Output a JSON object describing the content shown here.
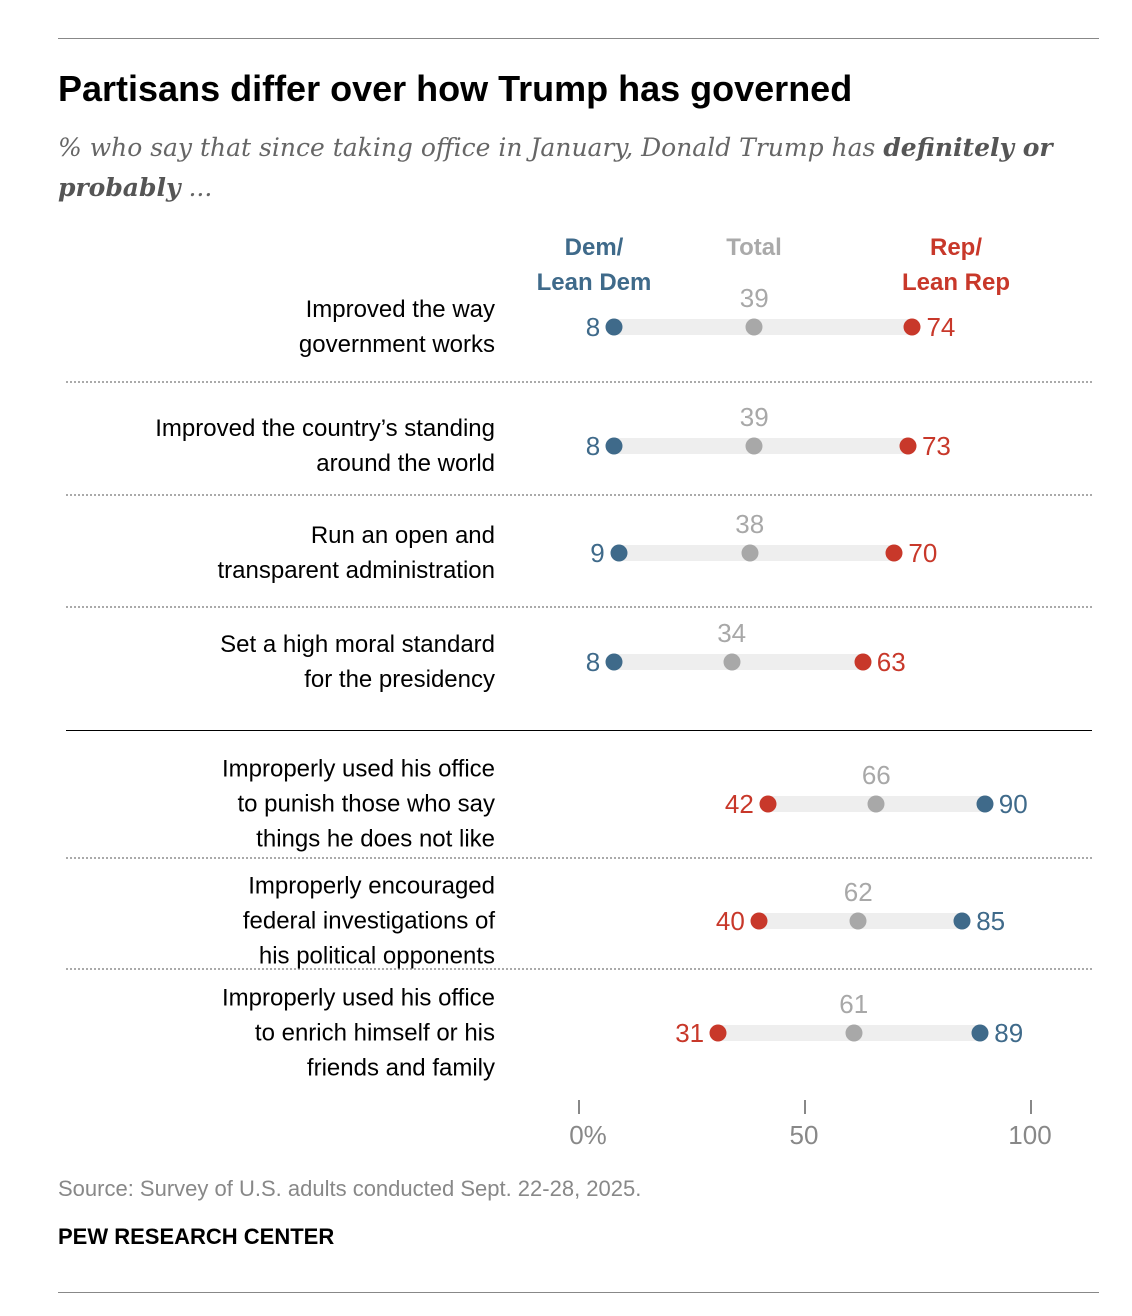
{
  "title": "Partisans differ over how Trump has governed",
  "subtitle": {
    "text": "% who say that since taking office in January, Donald Trump has ",
    "bold": "definitely or probably",
    "end": " ..."
  },
  "source": "Source: Survey of U.S. adults conducted Sept. 22-28, 2025.",
  "branding": "PEW RESEARCH CENTER",
  "colors": {
    "dem": "#3f6a8a",
    "rep": "#c8382a",
    "total": "#a8a8a8",
    "bar": "#eeeeee"
  },
  "chart_data": {
    "type": "dot",
    "legend": {
      "dem": "Dem/ Lean Dem",
      "dem_l1": "Dem/",
      "dem_l2": "Lean Dem",
      "total": "Total",
      "rep_l1": "Rep/",
      "rep_l2": "Lean Rep"
    },
    "xlim": [
      0,
      100
    ],
    "ticks": [
      {
        "value": 0,
        "label": "0%"
      },
      {
        "value": 50,
        "label": "50"
      },
      {
        "value": 100,
        "label": "100"
      }
    ],
    "rows": [
      {
        "label": [
          "Improved the way",
          "government works"
        ],
        "dem": 8,
        "total": 39,
        "rep": 74
      },
      {
        "label": [
          "Improved the country’s standing",
          "around the world"
        ],
        "dem": 8,
        "total": 39,
        "rep": 73
      },
      {
        "label": [
          "Run an open and",
          "transparent administration"
        ],
        "dem": 9,
        "total": 38,
        "rep": 70
      },
      {
        "label": [
          "Set a high moral standard",
          "for the presidency"
        ],
        "dem": 8,
        "total": 34,
        "rep": 63
      },
      {
        "label": [
          "Improperly used his office",
          "to punish those who say",
          "things he does not like"
        ],
        "dem": 90,
        "total": 66,
        "rep": 42
      },
      {
        "label": [
          "Improperly encouraged",
          "federal investigations of",
          "his political opponents"
        ],
        "dem": 85,
        "total": 62,
        "rep": 40
      },
      {
        "label": [
          "Improperly used his office",
          "to enrich himself or his",
          "friends and family"
        ],
        "dem": 89,
        "total": 61,
        "rep": 31
      }
    ]
  }
}
